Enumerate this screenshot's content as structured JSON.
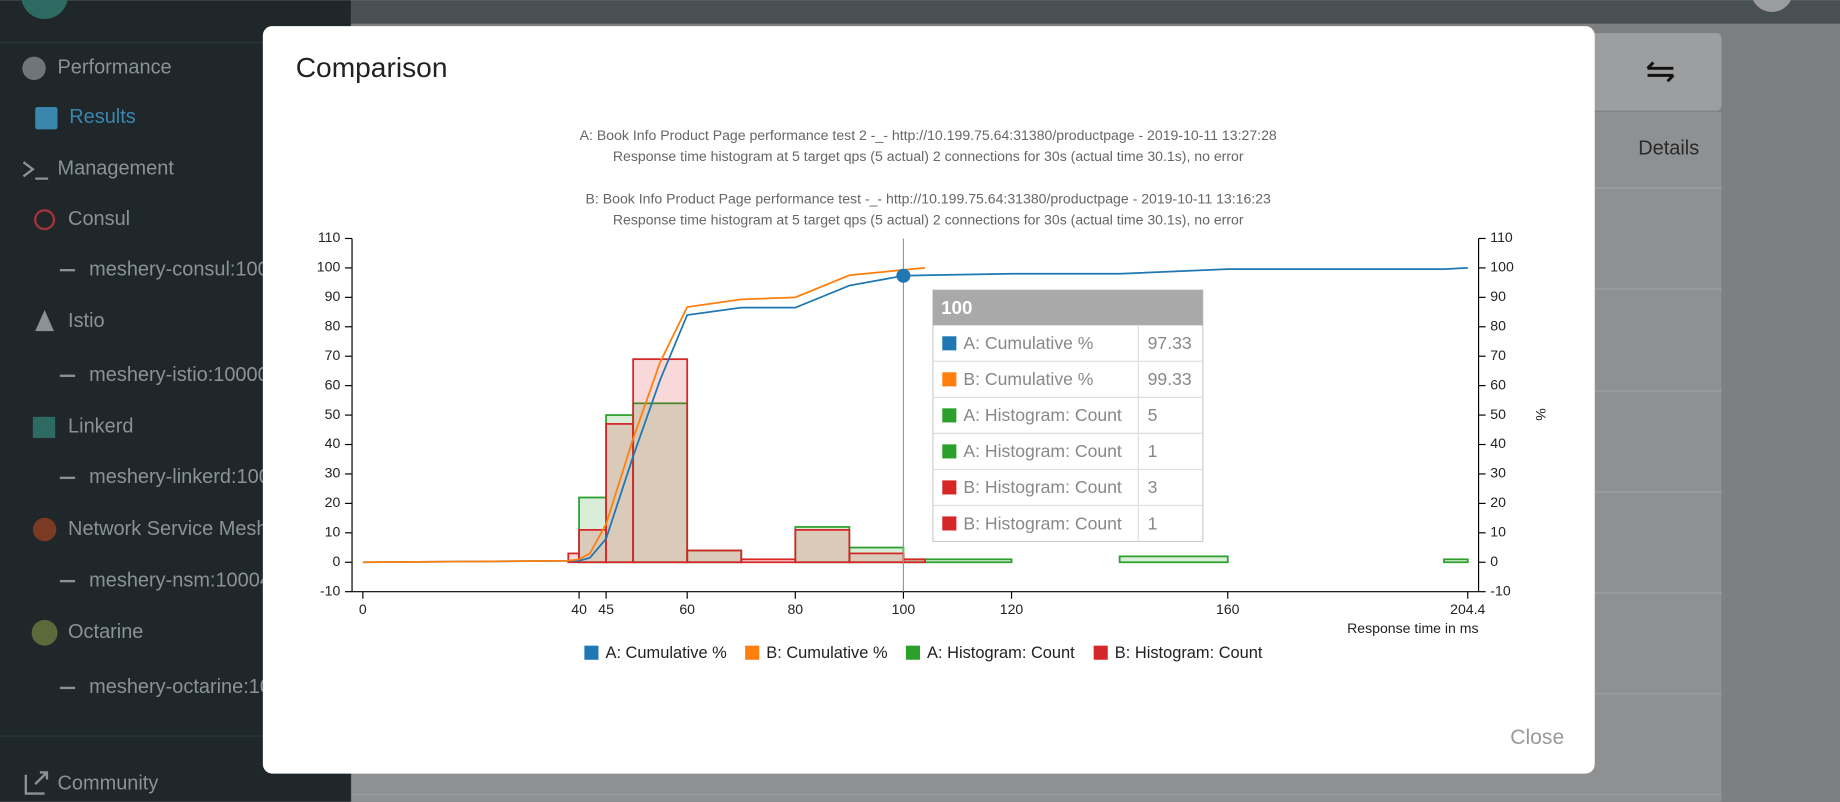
{
  "sidebar": {
    "items": [
      "Performance",
      "Results",
      "Management",
      "Consul",
      "meshery-consul:100",
      "Istio",
      "meshery-istio:10000",
      "Linkerd",
      "meshery-linkerd:100",
      "Network Service Mesh",
      "meshery-nsm:10004",
      "Octarine",
      "meshery-octarine:10",
      "Community"
    ]
  },
  "page": {
    "details_header": "Details"
  },
  "modal": {
    "title": "Comparison",
    "close": "Close"
  },
  "chart_data": {
    "type": "line",
    "subtitle": [
      "A: Book Info Product Page performance test 2 -_- http://10.199.75.64:31380/productpage - 2019-10-11 13:27:28",
      "Response time histogram at 5 target qps (5 actual) 2 connections for 30s (actual time 30.1s), no error",
      "B: Book Info Product Page performance test -_- http://10.199.75.64:31380/productpage - 2019-10-11 13:16:23",
      "Response time histogram at 5 target qps (5 actual) 2 connections for 30s (actual time 30.1s), no error"
    ],
    "x_label": "Response time in ms",
    "y2_label": "%",
    "xlim": [
      -2,
      206.4
    ],
    "xticks": [
      0,
      40,
      45,
      60,
      80,
      100,
      120,
      160,
      204.4
    ],
    "ylim": [
      -10,
      110
    ],
    "yticks": [
      -10,
      0,
      10,
      20,
      30,
      40,
      50,
      60,
      70,
      80,
      90,
      100,
      110
    ],
    "y2lim": [
      -10,
      110
    ],
    "y2ticks": [
      -10,
      0,
      10,
      20,
      30,
      40,
      50,
      60,
      70,
      80,
      90,
      100,
      110
    ],
    "grid": false,
    "series": [
      {
        "name": "A: Cumulative %",
        "type": "line",
        "color": "#1f77b4",
        "axis": "y2",
        "x": [
          0,
          40,
          42,
          45,
          50,
          55,
          60,
          70,
          80,
          90,
          100,
          104,
          120,
          140,
          160,
          200,
          204.4
        ],
        "values": [
          0,
          0.5,
          1.5,
          8,
          36,
          62,
          84,
          86.5,
          86.5,
          94,
          97.33,
          97.5,
          98,
          98,
          99.6,
          99.6,
          100
        ]
      },
      {
        "name": "B: Cumulative %",
        "type": "line",
        "color": "#ff7f0e",
        "axis": "y2",
        "x": [
          0,
          38,
          40,
          42,
          45,
          50,
          55,
          60,
          70,
          80,
          90,
          100,
          104
        ],
        "values": [
          0,
          0.5,
          1,
          3,
          13,
          42,
          68,
          86.7,
          89.3,
          90,
          97.5,
          99.33,
          100
        ]
      },
      {
        "name": "A: Histogram: Count",
        "type": "histogram",
        "color": "#2ca02c",
        "bins": [
          40,
          45,
          50,
          60,
          70,
          80,
          90,
          100,
          120,
          140,
          160,
          200,
          204.4
        ],
        "values": [
          22,
          50,
          54,
          4,
          0,
          12,
          5,
          1,
          0,
          2,
          0,
          1
        ]
      },
      {
        "name": "B: Histogram: Count",
        "type": "histogram",
        "color": "#d62728",
        "bins": [
          38,
          40,
          45,
          50,
          60,
          70,
          80,
          90,
          100,
          104
        ],
        "values": [
          3,
          11,
          47,
          69,
          4,
          1,
          11,
          3,
          1
        ]
      }
    ],
    "tooltip": {
      "title": 100,
      "rows": [
        {
          "name": "A: Cumulative %",
          "color": "#1f77b4",
          "value": 97.33
        },
        {
          "name": "B: Cumulative %",
          "color": "#ff7f0e",
          "value": 99.33
        },
        {
          "name": "A: Histogram: Count",
          "color": "#2ca02c",
          "value": 5
        },
        {
          "name": "A: Histogram: Count",
          "color": "#2ca02c",
          "value": 1
        },
        {
          "name": "B: Histogram: Count",
          "color": "#d62728",
          "value": 3
        },
        {
          "name": "B: Histogram: Count",
          "color": "#d62728",
          "value": 1
        }
      ]
    }
  }
}
